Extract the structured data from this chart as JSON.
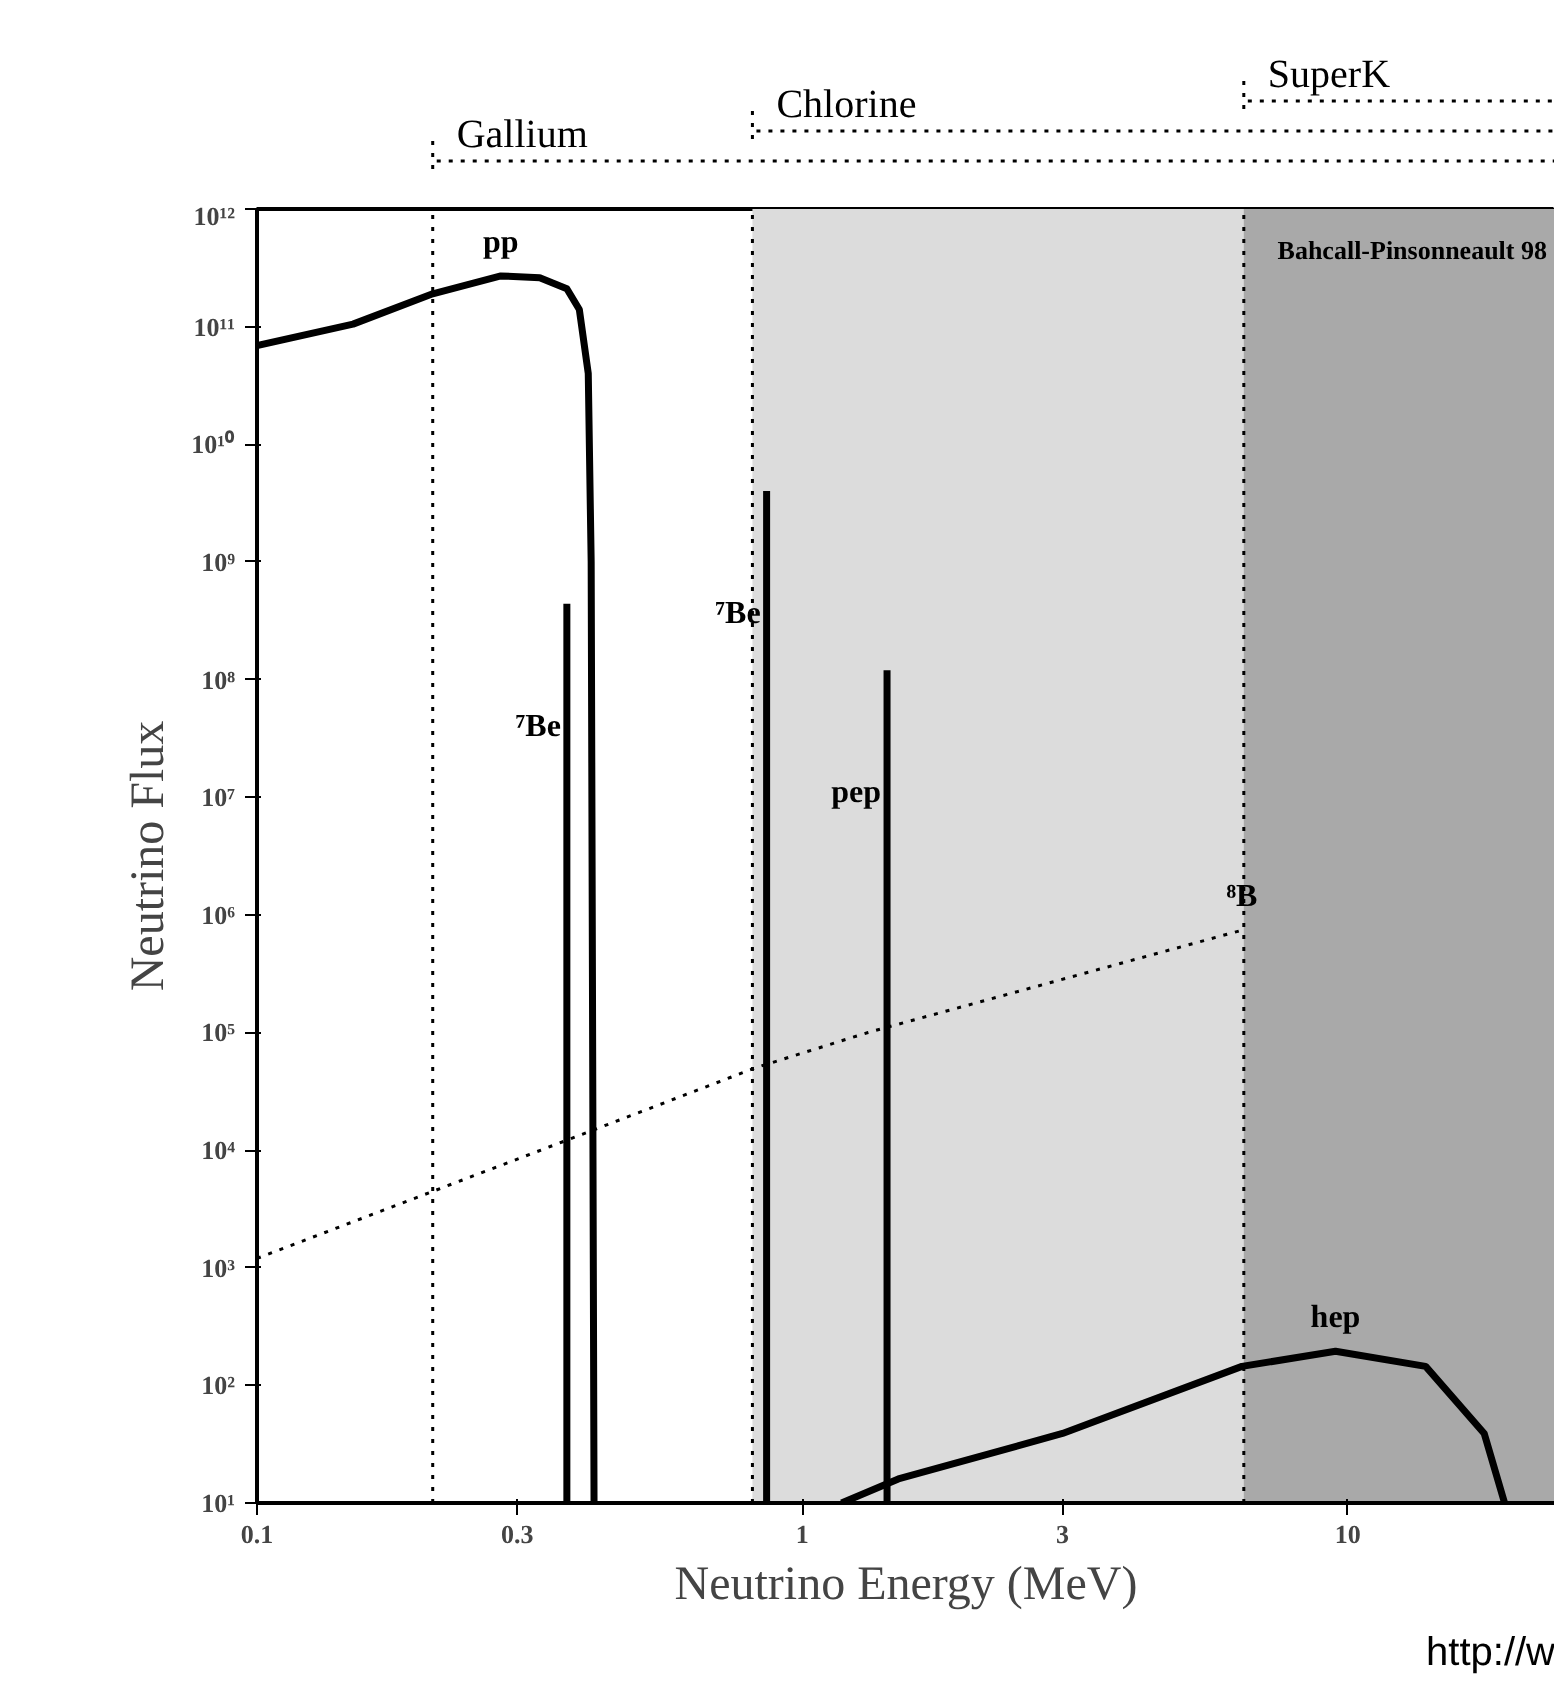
{
  "chart_data": {
    "type": "line",
    "xlabel": "Neutrino Energy (MeV)",
    "ylabel": "Neutrino Flux",
    "log": "xy",
    "xlim": [
      0.1,
      24
    ],
    "ylim": [
      10,
      1000000000000.0
    ],
    "xticks": [
      0.1,
      0.3,
      1,
      3,
      10
    ],
    "yticks": [
      {
        "value": 10,
        "label": "10¹"
      },
      {
        "value": 100,
        "label": "10²"
      },
      {
        "value": 1000,
        "label": "10³"
      },
      {
        "value": 10000,
        "label": "10⁴"
      },
      {
        "value": 100000,
        "label": "10⁵"
      },
      {
        "value": 1000000,
        "label": "10⁶"
      },
      {
        "value": 10000000,
        "label": "10⁷"
      },
      {
        "value": 100000000,
        "label": "10⁸"
      },
      {
        "value": 1000000000,
        "label": "10⁹"
      },
      {
        "value": 10000000000,
        "label": "10¹⁰"
      },
      {
        "value": 100000000000,
        "label": "10¹¹"
      },
      {
        "value": 1000000000000,
        "label": "10¹²"
      }
    ],
    "grid": false,
    "legend": "top",
    "series": [
      {
        "name": "pp",
        "color": "#000000",
        "line_style": "solid",
        "x": [
          0.1,
          0.15,
          0.21,
          0.28,
          0.33,
          0.37,
          0.39,
          0.405,
          0.41,
          0.415
        ],
        "values": [
          69000000000.0,
          105000000000.0,
          190000000000.0,
          270000000000.0,
          260000000000.0,
          210000000000.0,
          140000000000.0,
          40000000000.0,
          1000000000.0,
          10
        ]
      },
      {
        "name": "⁷Be",
        "color": "#000000",
        "line_style": "solid",
        "x": [
          0.37,
          0.37
        ],
        "values": [
          10,
          440000000.0
        ]
      },
      {
        "name": "⁷Be",
        "color": "#000000",
        "line_style": "solid",
        "x": [
          0.86,
          0.86
        ],
        "values": [
          10,
          4000000000.0
        ]
      },
      {
        "name": "pep",
        "color": "#000000",
        "line_style": "solid",
        "x": [
          1.43,
          1.43
        ],
        "values": [
          10,
          120000000.0
        ]
      },
      {
        "name": "⁸B",
        "color": "#000000",
        "line_style": "dotted",
        "x": [
          0.1,
          0.35,
          0.82,
          1.32,
          6.4
        ],
        "values": [
          1200.0,
          11000.0,
          50000.0,
          100000.0,
          740000.0
        ]
      },
      {
        "name": "hep",
        "color": "#000000",
        "line_style": "solid",
        "x": [
          1.18,
          1.5,
          3,
          6.4,
          9.5,
          13.9,
          17.8,
          19.4
        ],
        "values": [
          10,
          16,
          39,
          145,
          195,
          145,
          39,
          10
        ]
      }
    ],
    "ref_lines": [
      {
        "axis": "x",
        "value": 0.21,
        "label": "Gallium",
        "color": "#000000",
        "line_style": "dotted"
      },
      {
        "axis": "x",
        "value": 0.81,
        "label": "Chlorine",
        "color": "#000000",
        "line_style": "dotted"
      },
      {
        "axis": "x",
        "value": 6.45,
        "label": "SuperK",
        "color": "#000000",
        "line_style": "dotted"
      }
    ],
    "bands": [
      {
        "axis": "x",
        "from": 0.81,
        "to": 24,
        "color": "#dcdcdc"
      },
      {
        "axis": "x",
        "from": 6.45,
        "to": 24,
        "color": "#a9a9a9"
      }
    ],
    "annotations": [
      "Bahcall-Pinsonneault 98",
      "http://w"
    ]
  }
}
